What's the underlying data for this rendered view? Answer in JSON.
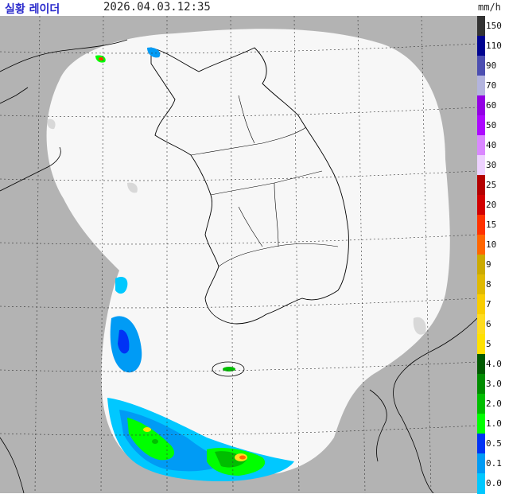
{
  "header": {
    "title": "실황 레이더",
    "timestamp": "2026.04.03.12:35",
    "unit": "mm/h"
  },
  "map": {
    "outside_color": "#b3b3b3",
    "coverage_color": "#f7f7f7",
    "border_color": "#000000",
    "grid_color": "#333333"
  },
  "legend": [
    {
      "label": "150",
      "color": "#333333"
    },
    {
      "label": "110",
      "color": "#000390"
    },
    {
      "label": "90",
      "color": "#4c4eb1"
    },
    {
      "label": "70",
      "color": "#b3b4de"
    },
    {
      "label": "60",
      "color": "#9300e4"
    },
    {
      "label": "50",
      "color": "#ad07ff"
    },
    {
      "label": "40",
      "color": "#da87ff"
    },
    {
      "label": "30",
      "color": "#eed2ff"
    },
    {
      "label": "25",
      "color": "#b40000"
    },
    {
      "label": "20",
      "color": "#d20000"
    },
    {
      "label": "15",
      "color": "#ff3200"
    },
    {
      "label": "10",
      "color": "#ff6600"
    },
    {
      "label": "9",
      "color": "#ccaa00"
    },
    {
      "label": "8",
      "color": "#e0b900"
    },
    {
      "label": "7",
      "color": "#f9cd00"
    },
    {
      "label": "6",
      "color": "#ffdc1f"
    },
    {
      "label": "5",
      "color": "#ffe100"
    },
    {
      "label": "4.0",
      "color": "#005a00"
    },
    {
      "label": "3.0",
      "color": "#008c00"
    },
    {
      "label": "2.0",
      "color": "#00be00"
    },
    {
      "label": "1.0",
      "color": "#00ff00"
    },
    {
      "label": "0.5",
      "color": "#0033f5"
    },
    {
      "label": "0.1",
      "color": "#009bf5"
    },
    {
      "label": "0.0",
      "color": "#00c8ff"
    }
  ]
}
